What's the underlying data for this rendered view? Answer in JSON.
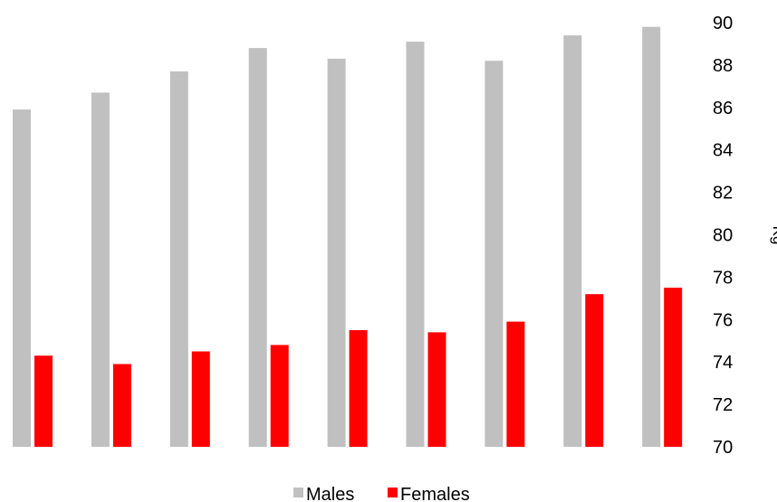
{
  "chart_data": {
    "type": "bar",
    "categories": [
      "",
      "",
      "",
      "",
      "",
      "",
      "",
      "",
      ""
    ],
    "series": [
      {
        "name": "Males",
        "color": "#c0c0c0",
        "values": [
          85.9,
          86.7,
          87.7,
          88.8,
          88.3,
          89.1,
          88.2,
          89.4,
          89.8
        ]
      },
      {
        "name": "Females",
        "color": "#ff0000",
        "values": [
          74.3,
          73.9,
          74.5,
          74.8,
          75.5,
          75.4,
          75.9,
          77.2,
          77.5
        ]
      }
    ],
    "ylabel": "Kg",
    "ylim": [
      70,
      90
    ],
    "yticks": [
      "70",
      "72",
      "74",
      "76",
      "78",
      "80",
      "82",
      "84",
      "86",
      "88",
      "90"
    ],
    "y_axis_side": "right",
    "grid": false,
    "legend": "bottom-center"
  }
}
